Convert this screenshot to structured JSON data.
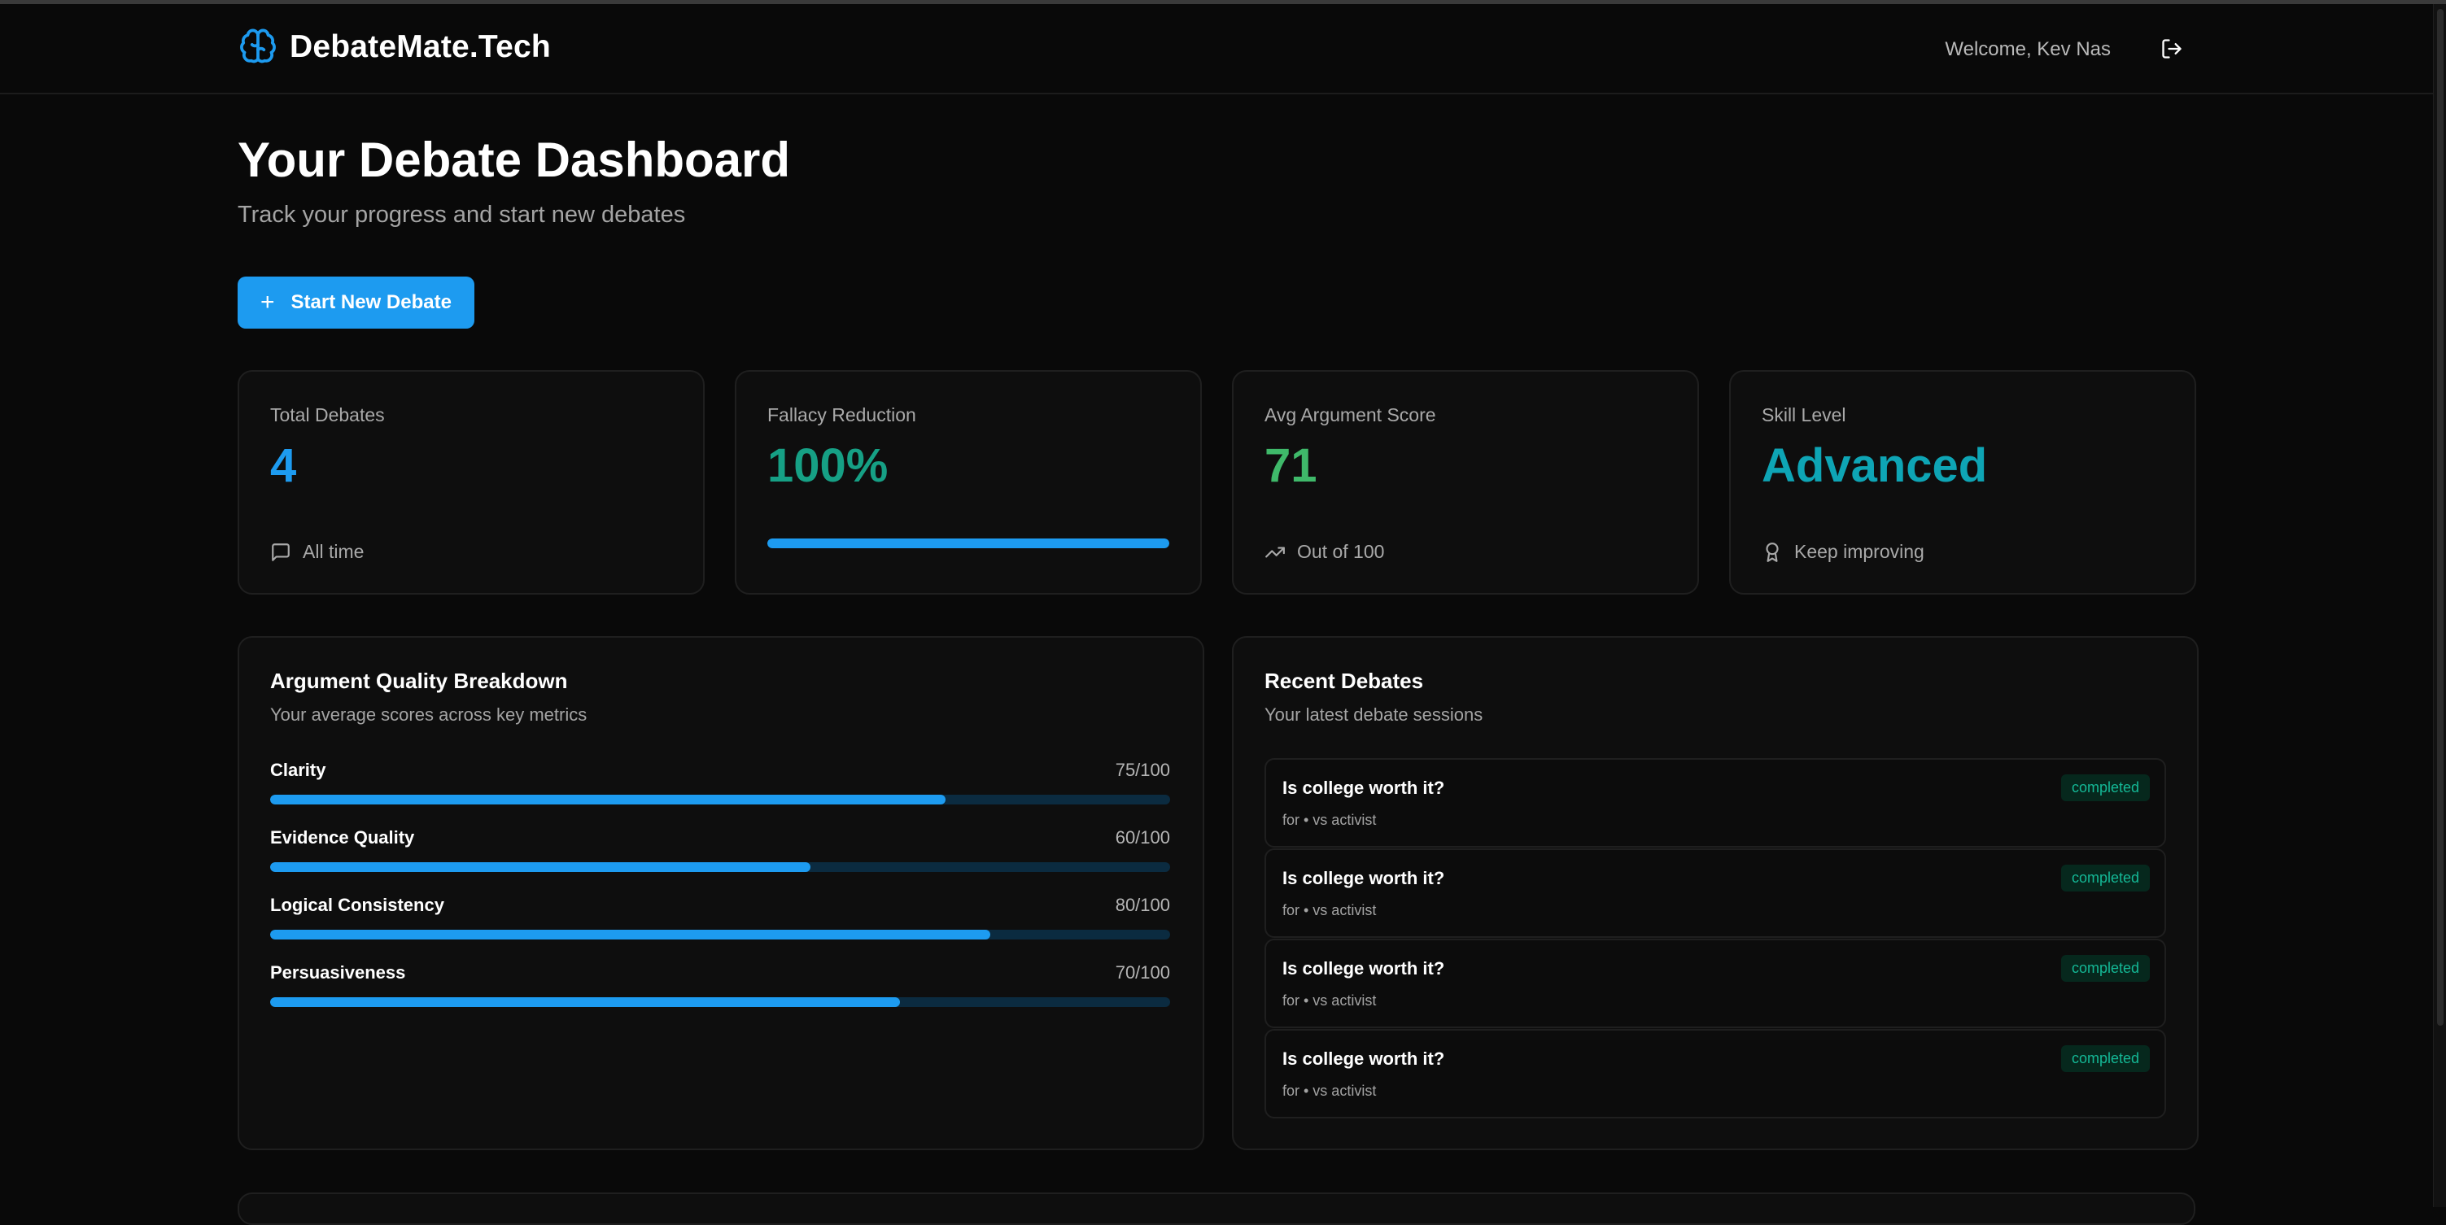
{
  "header": {
    "brand": "DebateMate.Tech",
    "welcome": "Welcome, Kev Nas"
  },
  "page": {
    "title": "Your Debate Dashboard",
    "subtitle": "Track your progress and start new debates",
    "cta_label": "Start New Debate"
  },
  "stats": {
    "total": {
      "label": "Total Debates",
      "value": "4",
      "foot": "All time",
      "color": "#1d9bf0"
    },
    "fallacy": {
      "label": "Fallacy Reduction",
      "value": "100%",
      "progress": 1.0,
      "color": "#16a085"
    },
    "score": {
      "label": "Avg Argument Score",
      "value": "71",
      "foot": "Out of 100",
      "color": "#3fb96a"
    },
    "skill": {
      "label": "Skill Level",
      "value": "Advanced",
      "foot": "Keep improving",
      "color": "#0ea5b5"
    }
  },
  "quality": {
    "title": "Argument Quality Breakdown",
    "subtitle": "Your average scores across key metrics",
    "metrics": [
      {
        "name": "Clarity",
        "value": "75/100",
        "score": 75
      },
      {
        "name": "Evidence Quality",
        "value": "60/100",
        "score": 60
      },
      {
        "name": "Logical Consistency",
        "value": "80/100",
        "score": 80
      },
      {
        "name": "Persuasiveness",
        "value": "70/100",
        "score": 70
      }
    ]
  },
  "recent": {
    "title": "Recent Debates",
    "subtitle": "Your latest debate sessions",
    "items": [
      {
        "title": "Is college worth it?",
        "meta": "for • vs activist",
        "status": "completed"
      },
      {
        "title": "Is college worth it?",
        "meta": "for • vs activist",
        "status": "completed"
      },
      {
        "title": "Is college worth it?",
        "meta": "for • vs activist",
        "status": "completed"
      },
      {
        "title": "Is college worth it?",
        "meta": "for • vs activist",
        "status": "completed"
      }
    ]
  },
  "colors": {
    "accent": "#1d9bf0",
    "background": "#090909",
    "status_completed": "#14b896"
  },
  "icons": {
    "brand": "brain-icon",
    "logout": "log-out-icon",
    "total_foot": "message-square-icon",
    "score_foot": "trending-up-icon",
    "skill_foot": "award-icon",
    "cta": "plus-icon"
  }
}
